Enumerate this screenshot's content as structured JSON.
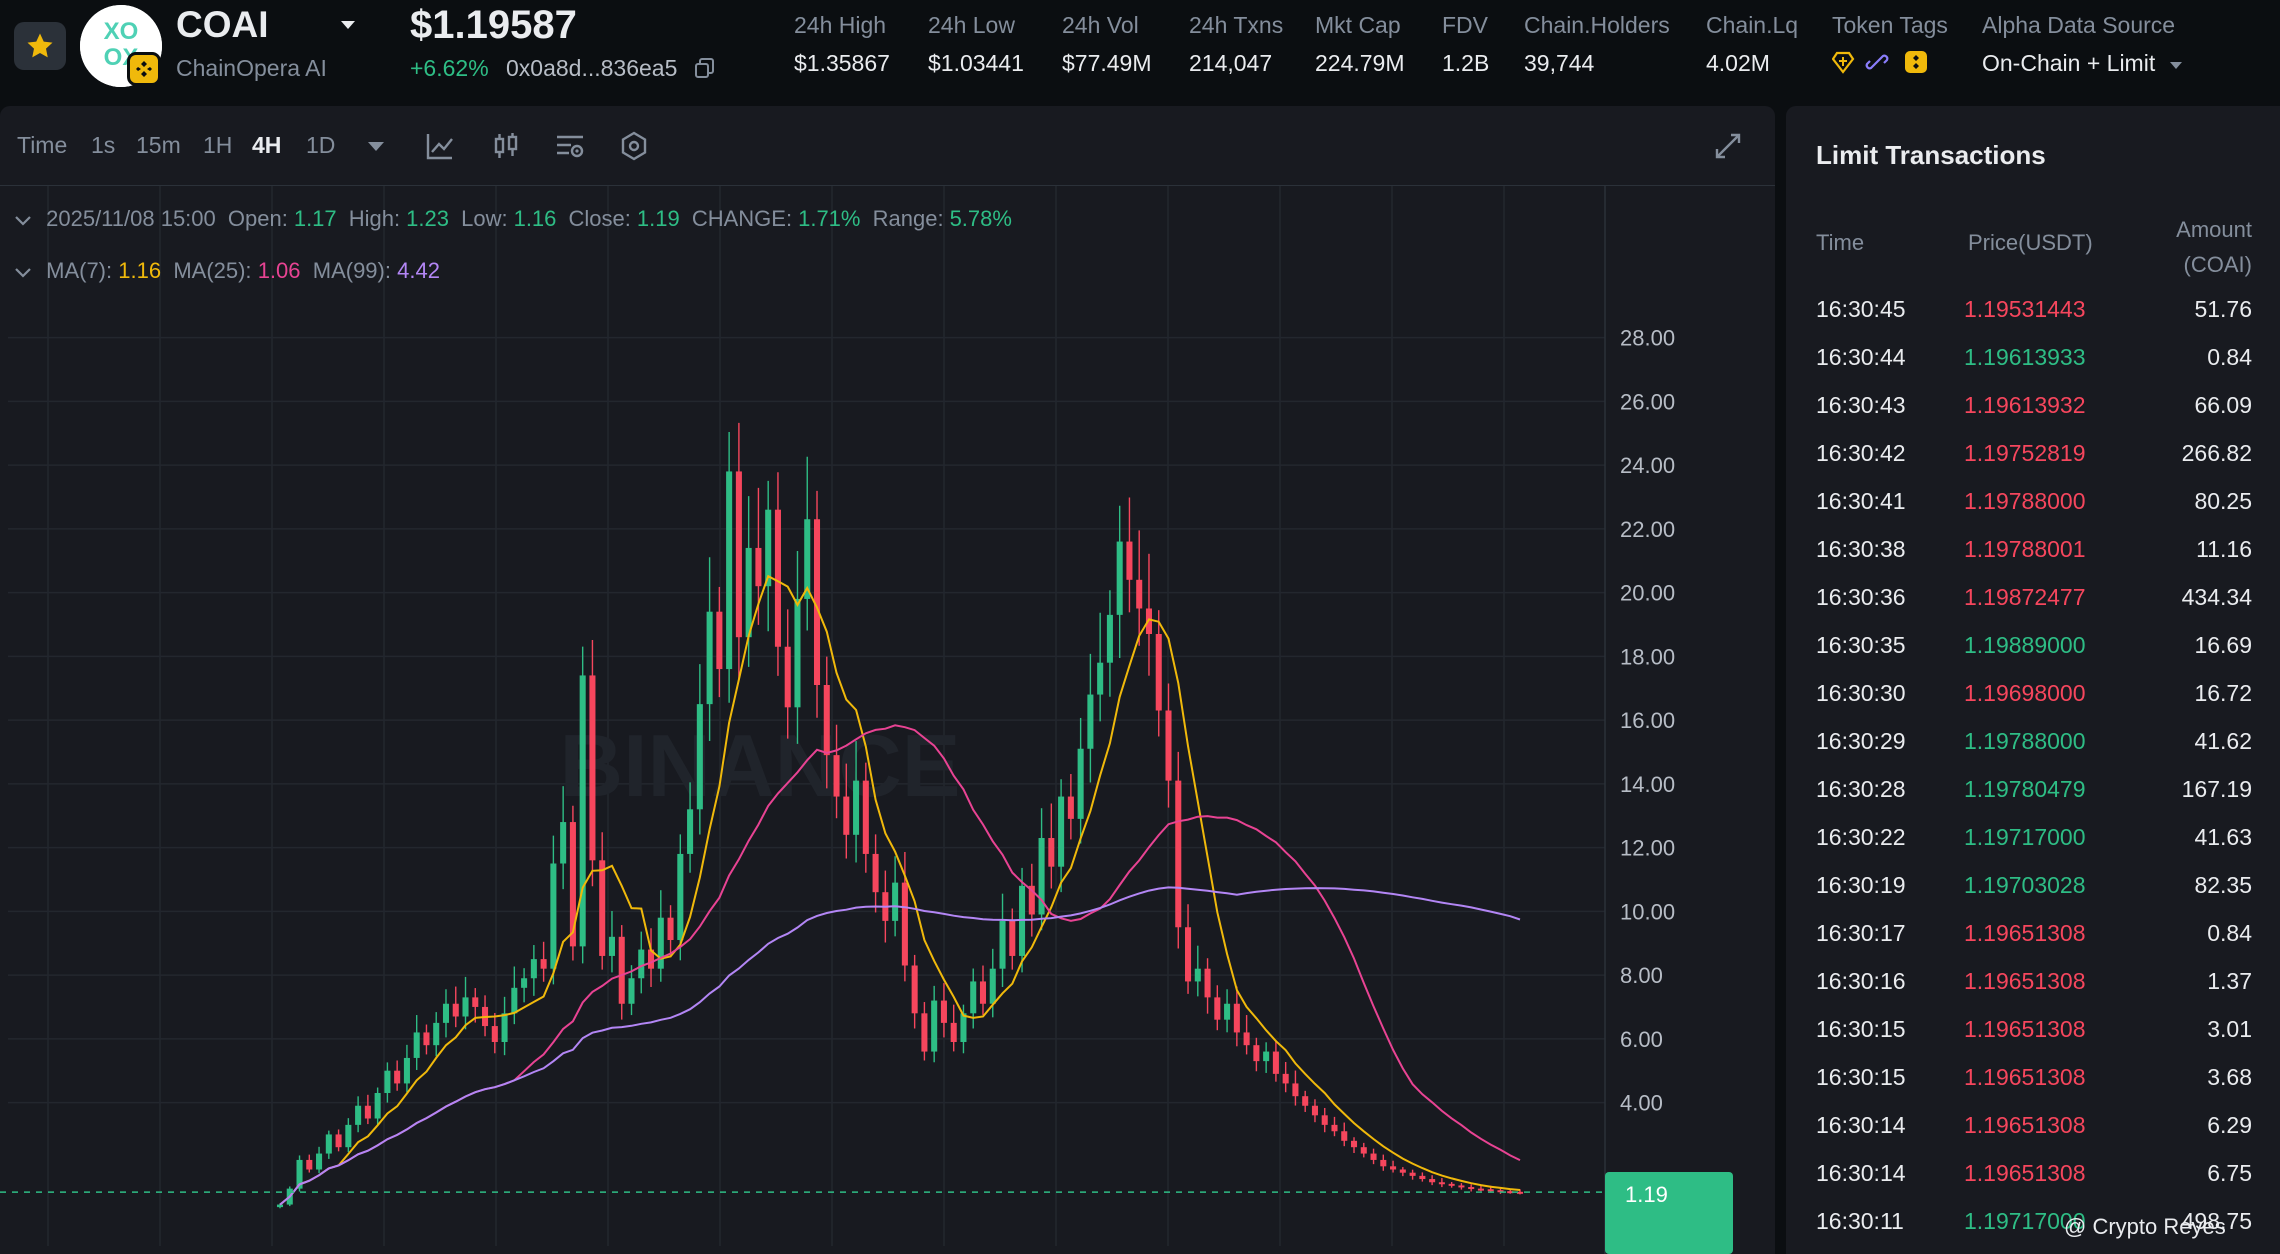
{
  "header": {
    "symbol": "COAI",
    "name": "ChainOpera AI",
    "price": "$1.19587",
    "change": "+6.62%",
    "address": "0x0a8d...836ea5",
    "stats": [
      {
        "label": "24h High",
        "value": "$1.35867"
      },
      {
        "label": "24h Low",
        "value": "$1.03441"
      },
      {
        "label": "24h Vol",
        "value": "$77.49M"
      },
      {
        "label": "24h Txns",
        "value": "214,047"
      },
      {
        "label": "Mkt Cap",
        "value": "224.79M"
      },
      {
        "label": "FDV",
        "value": "1.2B"
      },
      {
        "label": "Chain.Holders",
        "value": "39,744"
      },
      {
        "label": "Chain.Lq",
        "value": "4.02M"
      }
    ],
    "token_tags_label": "Token Tags",
    "alpha_label": "Alpha Data Source",
    "alpha_value": "On-Chain + Limit"
  },
  "toolbar": {
    "time_label": "Time",
    "intervals": [
      "1s",
      "15m",
      "1H",
      "4H",
      "1D"
    ],
    "active_interval": "4H"
  },
  "ohlc": {
    "date": "2025/11/08 15:00",
    "open_label": "Open:",
    "open": "1.17",
    "high_label": "High:",
    "high": "1.23",
    "low_label": "Low:",
    "low": "1.16",
    "close_label": "Close:",
    "close": "1.19",
    "change_label": "CHANGE:",
    "change": "1.71%",
    "range_label": "Range:",
    "range": "5.78%"
  },
  "ma": {
    "ma7_label": "MA(7):",
    "ma7": "1.16",
    "ma25_label": "MA(25):",
    "ma25": "1.06",
    "ma99_label": "MA(99):",
    "ma99": "4.42"
  },
  "chart_data": {
    "type": "candlestick",
    "y_ticks": [
      4,
      6,
      8,
      10,
      12,
      14,
      16,
      18,
      20,
      22,
      24,
      26,
      28
    ],
    "y_tick_labels": [
      "4.00",
      "6.00",
      "8.00",
      "10.00",
      "12.00",
      "14.00",
      "16.00",
      "18.00",
      "20.00",
      "22.00",
      "24.00",
      "26.00",
      "28.00"
    ],
    "ylim": [
      -0.5,
      31.5
    ],
    "watermark": "BINANCE",
    "last_price_label": "1.19",
    "grid": true,
    "colors": {
      "up": "#2ebd85",
      "down": "#f6465d",
      "ma7": "#f0b90b",
      "ma25": "#e84393",
      "ma99": "#b386f5"
    },
    "closes": [
      0.8,
      1.3,
      2.2,
      1.9,
      2.4,
      3.0,
      2.6,
      3.3,
      3.9,
      3.5,
      4.3,
      5.0,
      4.6,
      5.4,
      6.2,
      5.8,
      6.5,
      7.1,
      6.7,
      7.3,
      7.0,
      6.4,
      5.9,
      6.8,
      7.6,
      7.9,
      8.5,
      8.2,
      11.5,
      12.8,
      8.9,
      17.4,
      11.6,
      8.6,
      9.2,
      7.1,
      7.9,
      8.8,
      8.2,
      9.8,
      9.1,
      11.8,
      13.2,
      16.5,
      19.4,
      17.6,
      23.8,
      18.6,
      21.4,
      20.2,
      22.6,
      18.3,
      16.4,
      19.8,
      22.3,
      17.1,
      14.9,
      13.6,
      12.4,
      14.1,
      11.8,
      10.6,
      9.7,
      10.9,
      8.3,
      6.8,
      5.6,
      7.2,
      6.5,
      5.9,
      6.8,
      7.8,
      7.1,
      8.2,
      9.7,
      8.6,
      10.8,
      9.9,
      12.3,
      11.4,
      13.6,
      12.9,
      15.1,
      16.8,
      17.8,
      19.3,
      21.6,
      20.4,
      19.5,
      18.7,
      16.3,
      14.1,
      9.5,
      7.8,
      8.2,
      7.3,
      6.6,
      7.1,
      6.2,
      5.8,
      5.3,
      5.6,
      4.9,
      4.6,
      4.2,
      3.9,
      3.6,
      3.3,
      3.1,
      2.8,
      2.6,
      2.4,
      2.2,
      2.0,
      1.9,
      1.8,
      1.7,
      1.6,
      1.5,
      1.45,
      1.4,
      1.35,
      1.3,
      1.28,
      1.25,
      1.22,
      1.2,
      1.19
    ]
  },
  "transactions": {
    "title": "Limit Transactions",
    "col_time": "Time",
    "col_price": "Price(USDT)",
    "col_amount": "Amount (COAI)",
    "rows": [
      {
        "time": "16:30:45",
        "price": "1.19531443",
        "side": "sell",
        "amount": "51.76"
      },
      {
        "time": "16:30:44",
        "price": "1.19613933",
        "side": "buy",
        "amount": "0.84"
      },
      {
        "time": "16:30:43",
        "price": "1.19613932",
        "side": "sell",
        "amount": "66.09"
      },
      {
        "time": "16:30:42",
        "price": "1.19752819",
        "side": "sell",
        "amount": "266.82"
      },
      {
        "time": "16:30:41",
        "price": "1.19788000",
        "side": "sell",
        "amount": "80.25"
      },
      {
        "time": "16:30:38",
        "price": "1.19788001",
        "side": "sell",
        "amount": "11.16"
      },
      {
        "time": "16:30:36",
        "price": "1.19872477",
        "side": "sell",
        "amount": "434.34"
      },
      {
        "time": "16:30:35",
        "price": "1.19889000",
        "side": "buy",
        "amount": "16.69"
      },
      {
        "time": "16:30:30",
        "price": "1.19698000",
        "side": "sell",
        "amount": "16.72"
      },
      {
        "time": "16:30:29",
        "price": "1.19788000",
        "side": "buy",
        "amount": "41.62"
      },
      {
        "time": "16:30:28",
        "price": "1.19780479",
        "side": "buy",
        "amount": "167.19"
      },
      {
        "time": "16:30:22",
        "price": "1.19717000",
        "side": "buy",
        "amount": "41.63"
      },
      {
        "time": "16:30:19",
        "price": "1.19703028",
        "side": "buy",
        "amount": "82.35"
      },
      {
        "time": "16:30:17",
        "price": "1.19651308",
        "side": "sell",
        "amount": "0.84"
      },
      {
        "time": "16:30:16",
        "price": "1.19651308",
        "side": "sell",
        "amount": "1.37"
      },
      {
        "time": "16:30:15",
        "price": "1.19651308",
        "side": "sell",
        "amount": "3.01"
      },
      {
        "time": "16:30:15",
        "price": "1.19651308",
        "side": "sell",
        "amount": "3.68"
      },
      {
        "time": "16:30:14",
        "price": "1.19651308",
        "side": "sell",
        "amount": "6.29"
      },
      {
        "time": "16:30:14",
        "price": "1.19651308",
        "side": "sell",
        "amount": "6.75"
      },
      {
        "time": "16:30:11",
        "price": "1.19717000",
        "side": "buy",
        "amount": "498.75"
      }
    ]
  },
  "credit": "@ Crypto Reyes"
}
